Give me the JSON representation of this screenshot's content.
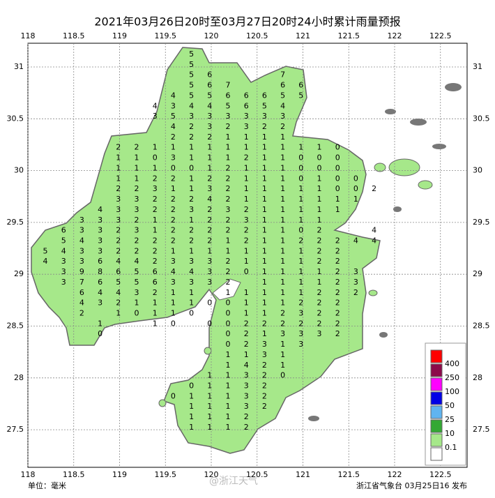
{
  "header": {
    "title": "2021年03月26日20时至03月27日20时24小时累计雨量预报"
  },
  "axes": {
    "lon_ticks": [
      118,
      118.5,
      119,
      119.5,
      120,
      120.5,
      121,
      121.5,
      122,
      122.5
    ],
    "lat_ticks": [
      31,
      30.5,
      30,
      29.5,
      29,
      28.5,
      28,
      27.5
    ]
  },
  "grid": {
    "rows": [
      [
        null,
        null,
        null,
        null,
        null,
        null,
        null,
        null,
        5,
        null,
        null,
        null,
        null,
        null,
        null,
        null,
        null,
        null,
        null
      ],
      [
        null,
        null,
        null,
        null,
        null,
        null,
        null,
        null,
        5,
        null,
        null,
        null,
        null,
        null,
        null,
        null,
        null,
        null,
        null
      ],
      [
        null,
        null,
        null,
        null,
        null,
        null,
        null,
        null,
        5,
        6,
        null,
        null,
        null,
        7,
        null,
        null,
        null,
        null,
        null
      ],
      [
        null,
        null,
        null,
        null,
        null,
        null,
        null,
        null,
        5,
        6,
        7,
        null,
        null,
        6,
        6,
        null,
        null,
        null,
        null
      ],
      [
        null,
        null,
        null,
        null,
        null,
        null,
        null,
        4,
        5,
        5,
        6,
        6,
        6,
        5,
        5,
        null,
        null,
        null,
        null
      ],
      [
        null,
        null,
        null,
        null,
        null,
        null,
        4,
        3,
        4,
        4,
        5,
        6,
        5,
        4,
        null,
        null,
        null,
        null,
        null
      ],
      [
        null,
        null,
        null,
        null,
        null,
        null,
        3,
        5,
        3,
        3,
        3,
        3,
        3,
        3,
        null,
        null,
        null,
        null,
        null
      ],
      [
        null,
        null,
        null,
        null,
        null,
        null,
        null,
        4,
        2,
        3,
        2,
        3,
        2,
        2,
        null,
        null,
        null,
        null,
        null
      ],
      [
        null,
        null,
        null,
        null,
        null,
        null,
        null,
        2,
        2,
        2,
        1,
        1,
        1,
        1,
        null,
        null,
        null,
        null,
        null
      ],
      [
        null,
        null,
        null,
        null,
        2,
        2,
        1,
        1,
        1,
        1,
        1,
        1,
        1,
        1,
        1,
        1,
        0,
        null,
        null
      ],
      [
        null,
        null,
        null,
        null,
        1,
        1,
        0,
        3,
        1,
        1,
        1,
        2,
        1,
        1,
        0,
        0,
        0,
        null,
        null
      ],
      [
        null,
        null,
        null,
        null,
        1,
        1,
        1,
        0,
        0,
        1,
        2,
        1,
        1,
        1,
        0,
        0,
        0,
        null,
        null
      ],
      [
        null,
        null,
        null,
        null,
        1,
        1,
        2,
        2,
        1,
        2,
        2,
        1,
        1,
        1,
        0,
        1,
        0,
        0,
        null
      ],
      [
        null,
        null,
        null,
        null,
        2,
        2,
        3,
        1,
        1,
        3,
        2,
        1,
        1,
        1,
        1,
        1,
        0,
        0,
        2
      ],
      [
        null,
        null,
        null,
        null,
        3,
        3,
        2,
        2,
        2,
        4,
        2,
        1,
        1,
        1,
        1,
        1,
        1,
        1,
        null
      ],
      [
        null,
        null,
        null,
        4,
        3,
        3,
        2,
        2,
        3,
        2,
        3,
        2,
        1,
        1,
        1,
        1,
        1,
        null,
        null
      ],
      [
        null,
        null,
        3,
        3,
        3,
        2,
        1,
        2,
        1,
        2,
        2,
        3,
        1,
        1,
        1,
        1,
        null,
        null,
        null
      ],
      [
        null,
        6,
        3,
        3,
        2,
        3,
        1,
        2,
        2,
        2,
        2,
        2,
        1,
        1,
        0,
        2,
        null,
        null,
        4
      ],
      [
        null,
        5,
        4,
        3,
        2,
        2,
        2,
        2,
        2,
        2,
        1,
        2,
        1,
        1,
        2,
        2,
        2,
        4,
        4
      ],
      [
        5,
        4,
        3,
        3,
        2,
        2,
        2,
        1,
        1,
        1,
        1,
        1,
        1,
        1,
        1,
        2,
        2,
        null,
        null
      ],
      [
        4,
        3,
        3,
        6,
        4,
        4,
        2,
        3,
        3,
        3,
        2,
        1,
        1,
        1,
        1,
        2,
        2,
        null,
        null
      ],
      [
        null,
        3,
        9,
        8,
        6,
        5,
        6,
        4,
        4,
        3,
        2,
        0,
        1,
        1,
        1,
        1,
        2,
        3,
        null
      ],
      [
        null,
        3,
        7,
        6,
        5,
        5,
        6,
        3,
        3,
        3,
        2,
        null,
        1,
        1,
        1,
        1,
        2,
        3,
        null
      ],
      [
        null,
        null,
        6,
        4,
        4,
        3,
        2,
        1,
        1,
        null,
        1,
        1,
        1,
        1,
        1,
        2,
        2,
        2,
        null
      ],
      [
        null,
        null,
        4,
        3,
        2,
        1,
        1,
        1,
        1,
        0,
        0,
        1,
        1,
        1,
        2,
        2,
        2,
        null,
        null
      ],
      [
        null,
        null,
        2,
        null,
        1,
        0,
        1,
        1,
        0,
        null,
        0,
        1,
        1,
        2,
        3,
        2,
        2,
        null,
        null
      ],
      [
        null,
        null,
        null,
        1,
        null,
        null,
        1,
        0,
        null,
        0,
        0,
        2,
        2,
        2,
        2,
        2,
        2,
        null,
        null
      ],
      [
        null,
        null,
        null,
        0,
        null,
        null,
        null,
        null,
        null,
        null,
        0,
        2,
        1,
        3,
        3,
        3,
        2,
        null,
        null
      ],
      [
        null,
        null,
        null,
        null,
        null,
        null,
        null,
        null,
        null,
        null,
        0,
        2,
        3,
        1,
        3,
        null,
        null,
        null,
        null
      ],
      [
        null,
        null,
        null,
        null,
        null,
        null,
        null,
        null,
        null,
        null,
        1,
        1,
        3,
        1,
        null,
        null,
        null,
        null,
        null
      ],
      [
        null,
        null,
        null,
        null,
        null,
        null,
        null,
        null,
        null,
        null,
        1,
        4,
        2,
        1,
        null,
        null,
        null,
        null,
        null
      ],
      [
        null,
        null,
        null,
        null,
        null,
        null,
        null,
        null,
        null,
        1,
        1,
        3,
        2,
        0,
        null,
        null,
        null,
        null,
        null
      ],
      [
        null,
        null,
        null,
        null,
        null,
        null,
        null,
        null,
        0,
        1,
        1,
        3,
        2,
        null,
        null,
        null,
        null,
        null,
        null
      ],
      [
        null,
        null,
        null,
        null,
        null,
        null,
        null,
        0,
        1,
        1,
        1,
        3,
        2,
        null,
        null,
        null,
        null,
        null,
        null
      ],
      [
        null,
        null,
        null,
        null,
        null,
        null,
        null,
        null,
        1,
        1,
        1,
        3,
        2,
        null,
        null,
        null,
        null,
        null,
        null
      ],
      [
        null,
        null,
        null,
        null,
        null,
        null,
        null,
        null,
        1,
        1,
        1,
        2,
        null,
        null,
        null,
        null,
        null,
        null,
        null
      ],
      [
        null,
        null,
        null,
        null,
        null,
        null,
        null,
        null,
        1,
        1,
        1,
        2,
        null,
        null,
        null,
        null,
        null,
        null,
        null
      ]
    ]
  },
  "legend": {
    "colors": [
      "#ff0000",
      "#8c0a4a",
      "#ff00ff",
      "#0000e6",
      "#60b4f0",
      "#33a833",
      "#a6e88a",
      "#ffffff"
    ],
    "levels": [
      400,
      250,
      100,
      50,
      25,
      10,
      0.1
    ]
  },
  "footer": {
    "unit": "单位：毫米",
    "issuer": "浙江省气象台 03月25日16 发布",
    "watermark": "@浙江天气"
  }
}
